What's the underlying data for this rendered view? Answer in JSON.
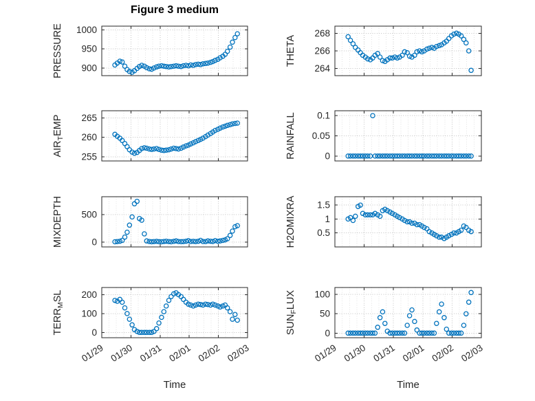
{
  "figure": {
    "title": "Figure 3 medium",
    "xlabel": "Time",
    "marker_color": "#0072BD",
    "axis_color": "#262626",
    "grid_major_color": "#c2c2c2",
    "grid_minor_color": "#e2e2e2",
    "tick_label_color": "#262626"
  },
  "chart_data": {
    "type": "scatter",
    "layout_hint": "4x2 grid of subplots, shared time axis 01/29 to 02/03, dotted grid on, open circle markers, no legend",
    "xlim": [
      0,
      5
    ],
    "x_ticks": [
      0,
      1,
      2,
      3,
      4,
      5
    ],
    "x_tick_labels": [
      "01/29",
      "01/30",
      "01/31",
      "02/01",
      "02/02",
      "02/03"
    ],
    "x": [
      0.45,
      0.53,
      0.62,
      0.7,
      0.79,
      0.87,
      0.95,
      1.04,
      1.12,
      1.21,
      1.29,
      1.37,
      1.46,
      1.54,
      1.63,
      1.71,
      1.79,
      1.88,
      1.96,
      2.05,
      2.13,
      2.21,
      2.3,
      2.38,
      2.47,
      2.55,
      2.63,
      2.72,
      2.8,
      2.89,
      2.97,
      3.05,
      3.14,
      3.22,
      3.31,
      3.39,
      3.47,
      3.56,
      3.64,
      3.73,
      3.81,
      3.89,
      3.98,
      4.06,
      4.15,
      4.23,
      4.31,
      4.4,
      4.48,
      4.57,
      4.65
    ],
    "subplots": [
      {
        "name": "PRESSURE",
        "ylabel": "PRESSURE",
        "row": 0,
        "col": 0,
        "ylim": [
          880,
          1010
        ],
        "yticks": [
          900,
          950,
          1000
        ],
        "y": [
          908,
          913,
          918,
          916,
          905,
          896,
          891,
          889,
          893,
          899,
          904,
          907,
          905,
          901,
          898,
          897,
          900,
          903,
          905,
          906,
          905,
          904,
          903,
          904,
          905,
          906,
          905,
          904,
          906,
          907,
          906,
          908,
          907,
          909,
          910,
          909,
          911,
          912,
          913,
          915,
          917,
          920,
          923,
          927,
          931,
          936,
          944,
          955,
          968,
          980,
          990
        ]
      },
      {
        "name": "THETA",
        "ylabel": "THETA",
        "row": 0,
        "col": 1,
        "ylim": [
          263.2,
          268.8
        ],
        "yticks": [
          264,
          266,
          268
        ],
        "y": [
          267.6,
          267.2,
          266.8,
          266.4,
          266.1,
          265.8,
          265.5,
          265.3,
          265.1,
          265.0,
          265.2,
          265.5,
          265.7,
          265.3,
          264.9,
          264.8,
          265.0,
          265.2,
          265.2,
          265.3,
          265.2,
          265.3,
          265.5,
          265.9,
          265.8,
          265.4,
          265.3,
          265.5,
          265.9,
          266.0,
          265.9,
          266.0,
          266.2,
          266.3,
          266.4,
          266.3,
          266.5,
          266.6,
          266.7,
          266.9,
          267.1,
          267.4,
          267.7,
          267.9,
          268.0,
          267.9,
          267.7,
          267.3,
          266.9,
          266.0,
          263.8
        ]
      },
      {
        "name": "AIR_TEMP",
        "ylabel": "AIR_TEMP",
        "row": 1,
        "col": 0,
        "ylim": [
          253.9,
          266.9
        ],
        "yticks": [
          255,
          260,
          265
        ],
        "y": [
          260.8,
          260.3,
          259.8,
          259.2,
          258.4,
          257.6,
          256.8,
          256.2,
          255.9,
          256.1,
          256.6,
          257.1,
          257.3,
          257.2,
          257.0,
          256.9,
          257.0,
          257.1,
          256.9,
          256.7,
          256.6,
          256.7,
          256.8,
          257.0,
          257.2,
          257.1,
          257.0,
          257.2,
          257.5,
          257.8,
          258.0,
          258.3,
          258.6,
          258.9,
          259.2,
          259.5,
          259.8,
          260.2,
          260.6,
          261.0,
          261.4,
          261.8,
          262.1,
          262.4,
          262.7,
          262.9,
          263.1,
          263.3,
          263.5,
          263.6,
          263.7
        ]
      },
      {
        "name": "RAINFALL",
        "ylabel": "RAINFALL",
        "row": 1,
        "col": 1,
        "ylim": [
          -0.012,
          0.112
        ],
        "yticks": [
          0,
          0.05,
          0.1
        ],
        "y": [
          0,
          0,
          0,
          0,
          0,
          0,
          0,
          0,
          0,
          0,
          0.1,
          0,
          0,
          0,
          0,
          0,
          0,
          0,
          0,
          0,
          0,
          0,
          0,
          0,
          0,
          0,
          0,
          0,
          0,
          0,
          0,
          0,
          0,
          0,
          0,
          0,
          0,
          0,
          0,
          0,
          0,
          0,
          0,
          0,
          0,
          0,
          0,
          0,
          0,
          0,
          0
        ]
      },
      {
        "name": "MIXDEPTH",
        "ylabel": "MIXDEPTH",
        "row": 2,
        "col": 0,
        "ylim": [
          -90,
          830
        ],
        "yticks": [
          0,
          500
        ],
        "y": [
          5,
          8,
          15,
          30,
          90,
          180,
          310,
          460,
          700,
          745,
          430,
          400,
          150,
          20,
          10,
          5,
          8,
          12,
          6,
          4,
          10,
          15,
          8,
          5,
          12,
          20,
          10,
          6,
          8,
          15,
          25,
          10,
          12,
          8,
          15,
          30,
          10,
          8,
          20,
          15,
          10,
          25,
          15,
          20,
          30,
          40,
          60,
          120,
          200,
          280,
          300
        ]
      },
      {
        "name": "H2OMIXRA",
        "ylabel": "H2OMIXRA",
        "row": 2,
        "col": 1,
        "ylim": [
          0,
          1.8
        ],
        "yticks": [
          0.5,
          1,
          1.5
        ],
        "y": [
          1.0,
          1.05,
          0.95,
          1.1,
          1.45,
          1.5,
          1.2,
          1.15,
          1.15,
          1.15,
          1.15,
          1.2,
          1.15,
          1.1,
          1.3,
          1.35,
          1.3,
          1.25,
          1.2,
          1.15,
          1.1,
          1.05,
          1.0,
          0.95,
          0.9,
          0.9,
          0.85,
          0.85,
          0.8,
          0.8,
          0.75,
          0.7,
          0.65,
          0.55,
          0.5,
          0.45,
          0.4,
          0.35,
          0.35,
          0.3,
          0.35,
          0.4,
          0.45,
          0.5,
          0.5,
          0.55,
          0.6,
          0.75,
          0.7,
          0.6,
          0.55
        ]
      },
      {
        "name": "TERR_MSL",
        "ylabel": "TERR_MSL",
        "row": 3,
        "col": 0,
        "ylim": [
          -28,
          238
        ],
        "yticks": [
          0,
          100,
          200
        ],
        "y": [
          170,
          165,
          175,
          160,
          130,
          100,
          70,
          40,
          15,
          5,
          0,
          0,
          0,
          0,
          0,
          0,
          5,
          20,
          50,
          80,
          110,
          140,
          170,
          190,
          205,
          210,
          200,
          190,
          175,
          160,
          150,
          145,
          140,
          145,
          150,
          148,
          145,
          150,
          148,
          145,
          150,
          145,
          140,
          135,
          140,
          145,
          130,
          110,
          70,
          95,
          65
        ]
      },
      {
        "name": "SUN_FLUX",
        "ylabel": "SUN_FLUX",
        "row": 3,
        "col": 1,
        "ylim": [
          -12,
          118
        ],
        "yticks": [
          0,
          50,
          100
        ],
        "y": [
          0,
          0,
          0,
          0,
          0,
          0,
          0,
          0,
          0,
          0,
          0,
          0,
          15,
          40,
          55,
          25,
          5,
          0,
          0,
          0,
          0,
          0,
          0,
          0,
          20,
          45,
          60,
          30,
          8,
          0,
          0,
          0,
          0,
          0,
          0,
          0,
          25,
          55,
          75,
          40,
          10,
          0,
          0,
          0,
          0,
          0,
          0,
          20,
          50,
          80,
          105
        ]
      }
    ]
  }
}
